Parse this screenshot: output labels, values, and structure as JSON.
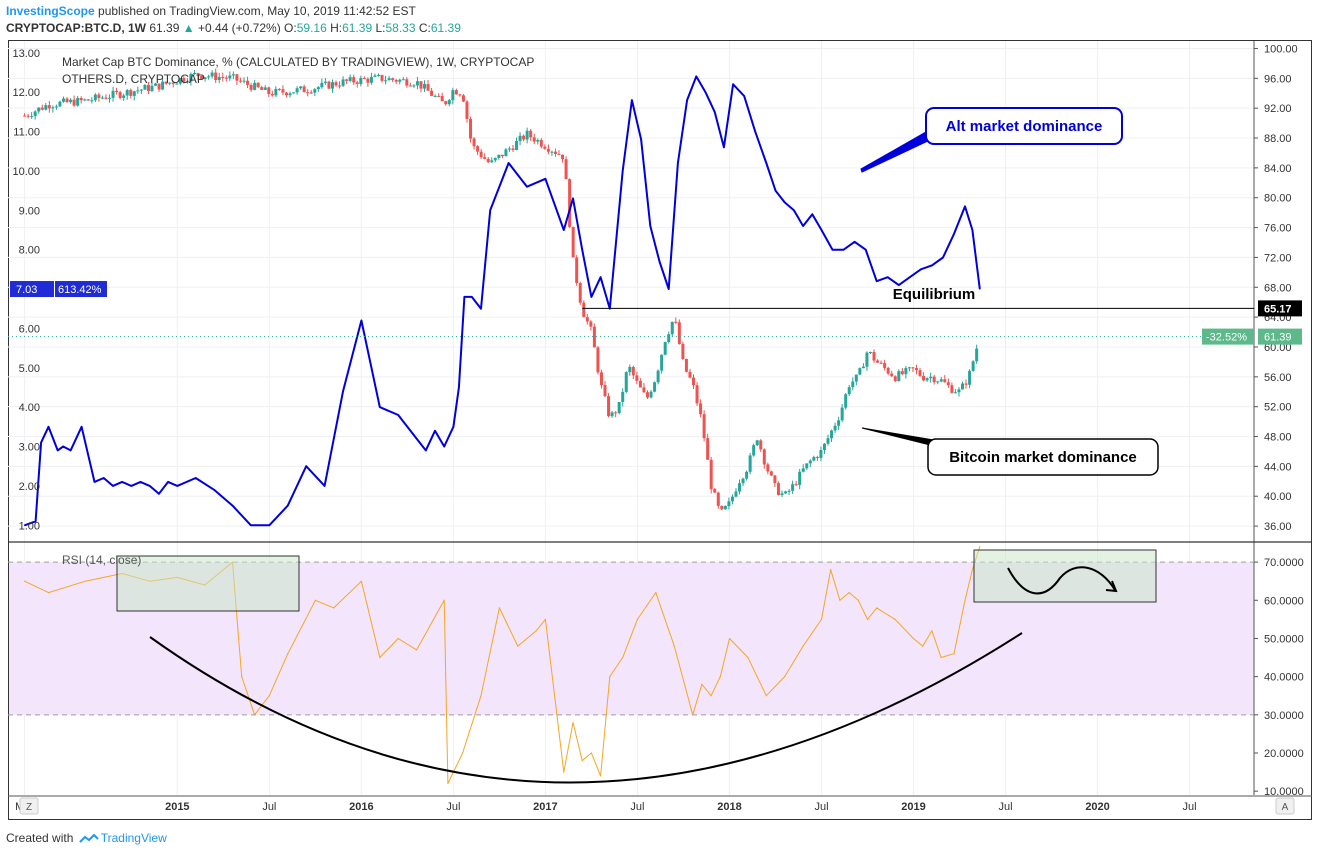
{
  "header": {
    "author": "InvestingScope",
    "published_text": "published on TradingView.com, May 10, 2019 11:42:52 EST",
    "symbol_line": {
      "symbol": "CRYPTOCAP:BTC.D, 1W",
      "last": "61.39",
      "arrow": "▲",
      "change": "+0.44 (+0.72%)",
      "o_label": "O:",
      "o_value": "59.16",
      "h_label": "H:",
      "h_value": "61.39",
      "l_label": "L:",
      "l_value": "58.33",
      "c_label": "C:",
      "c_value": "61.39"
    }
  },
  "legend": {
    "main_series": "Market Cap BTC Dominance, % (CALCULATED BY TRADINGVIEW), 1W, CRYPTOCAP",
    "overlay_series": "OTHERS.D, CRYPTOCAP"
  },
  "rsi_label": "RSI (14, close)",
  "annotations": {
    "alt": "Alt market dominance",
    "btc": "Bitcoin market dominance",
    "equilibrium": "Equilibrium"
  },
  "badges": {
    "left_value": "7.03",
    "left_pct": "613.42%",
    "equilibrium": "65.17",
    "right_pct": "-32.52%",
    "right_value": "61.39"
  },
  "footer": {
    "created_with": "Created with",
    "brand": "TradingView"
  },
  "corner_buttons": {
    "left": "Z",
    "right": "A"
  },
  "colors": {
    "alt_line": "#0000dd",
    "candle_up": "#26a69a",
    "candle_down": "#ef5350",
    "rsi_line": "#f5a623",
    "rsi_band": "#f3e5fb",
    "brand": "#2196f3"
  },
  "chart_data": {
    "type": "line",
    "x_axis": {
      "tick_labels": [
        "Mar",
        "2015",
        "Jul",
        "2016",
        "Jul",
        "2017",
        "Jul",
        "2018",
        "Jul",
        "2019",
        "Jul",
        "2020",
        "Jul"
      ]
    },
    "left_axis": {
      "range": [
        0.6,
        13.3
      ],
      "ticks": [
        "1.00",
        "2.00",
        "3.00",
        "4.00",
        "5.00",
        "6.00",
        "7.00",
        "8.00",
        "9.00",
        "10.00",
        "11.00",
        "12.00",
        "13.00"
      ]
    },
    "right_axis": {
      "range": [
        34,
        101
      ],
      "ticks": [
        "36.00",
        "40.00",
        "44.00",
        "48.00",
        "52.00",
        "56.00",
        "60.00",
        "64.00",
        "68.00",
        "72.00",
        "76.00",
        "80.00",
        "84.00",
        "88.00",
        "92.00",
        "96.00",
        "100.00"
      ]
    },
    "series": [
      {
        "name": "OTHERS.D, CRYPTOCAP",
        "axis": "left",
        "x": [
          2014.17,
          2014.23,
          2014.26,
          2014.3,
          2014.35,
          2014.38,
          2014.42,
          2014.48,
          2014.55,
          2014.6,
          2014.65,
          2014.7,
          2014.75,
          2014.8,
          2014.85,
          2014.9,
          2014.95,
          2015.0,
          2015.1,
          2015.2,
          2015.3,
          2015.4,
          2015.5,
          2015.6,
          2015.7,
          2015.8,
          2015.9,
          2016.0,
          2016.1,
          2016.2,
          2016.3,
          2016.35,
          2016.4,
          2016.45,
          2016.5,
          2016.53,
          2016.56,
          2016.6,
          2016.65,
          2016.7,
          2016.8,
          2016.9,
          2017.0,
          2017.1,
          2017.15,
          2017.2,
          2017.25,
          2017.3,
          2017.35,
          2017.42,
          2017.47,
          2017.52,
          2017.57,
          2017.62,
          2017.67,
          2017.72,
          2017.77,
          2017.82,
          2017.87,
          2017.92,
          2017.97,
          2018.02,
          2018.08,
          2018.14,
          2018.2,
          2018.25,
          2018.3,
          2018.35,
          2018.4,
          2018.45,
          2018.5,
          2018.56,
          2018.62,
          2018.68,
          2018.74,
          2018.8,
          2018.86,
          2018.92,
          2018.98,
          2019.04,
          2019.1,
          2019.16,
          2019.22,
          2019.28,
          2019.32,
          2019.36
        ],
        "values": [
          1.0,
          1.1,
          3.1,
          3.5,
          2.9,
          3.0,
          2.9,
          3.5,
          2.1,
          2.2,
          2.0,
          2.1,
          2.0,
          2.1,
          2.0,
          1.8,
          2.1,
          2.0,
          2.2,
          1.9,
          1.5,
          1.0,
          1.0,
          1.5,
          2.5,
          2.0,
          4.4,
          6.2,
          4.0,
          3.8,
          3.2,
          2.9,
          3.4,
          3.0,
          3.5,
          4.5,
          6.8,
          6.8,
          6.5,
          9.0,
          10.2,
          9.6,
          9.8,
          8.5,
          9.3,
          8.0,
          6.8,
          7.3,
          6.5,
          10.0,
          11.8,
          10.8,
          8.6,
          7.7,
          7.0,
          10.2,
          11.8,
          12.4,
          12.0,
          11.5,
          10.6,
          12.2,
          11.9,
          11.0,
          10.2,
          9.5,
          9.2,
          9.0,
          8.6,
          8.9,
          8.5,
          8.0,
          8.0,
          8.2,
          8.0,
          7.2,
          7.3,
          7.1,
          7.3,
          7.5,
          7.6,
          7.8,
          8.4,
          9.1,
          8.5,
          7.0
        ]
      },
      {
        "name": "Market Cap BTC Dominance, % (CALCULATED BY TRADINGVIEW)",
        "axis": "right",
        "x": [
          2014.17,
          2014.3,
          2014.5,
          2014.7,
          2014.9,
          2015.1,
          2015.3,
          2015.5,
          2015.7,
          2015.9,
          2016.1,
          2016.3,
          2016.45,
          2016.5,
          2016.55,
          2016.6,
          2016.7,
          2016.8,
          2016.9,
          2017.0,
          2017.1,
          2017.15,
          2017.2,
          2017.25,
          2017.3,
          2017.35,
          2017.4,
          2017.45,
          2017.5,
          2017.55,
          2017.6,
          2017.65,
          2017.7,
          2017.75,
          2017.8,
          2017.85,
          2017.9,
          2017.95,
          2018.0,
          2018.05,
          2018.1,
          2018.15,
          2018.2,
          2018.25,
          2018.3,
          2018.35,
          2018.4,
          2018.45,
          2018.5,
          2018.55,
          2018.6,
          2018.65,
          2018.7,
          2018.75,
          2018.8,
          2018.85,
          2018.9,
          2018.95,
          2019.0,
          2019.05,
          2019.1,
          2019.15,
          2019.2,
          2019.25,
          2019.3,
          2019.36
        ],
        "values": [
          91.0,
          92.5,
          93.0,
          94.0,
          95.0,
          96.5,
          96.0,
          94.0,
          94.5,
          95.5,
          96.0,
          95.5,
          92.5,
          94.5,
          94.0,
          87.0,
          84.5,
          86.5,
          88.5,
          87.0,
          85.5,
          71.5,
          65.0,
          62.0,
          55.0,
          50.5,
          52.0,
          57.5,
          55.0,
          53.0,
          56.0,
          61.0,
          64.0,
          57.5,
          55.0,
          50.0,
          41.5,
          37.5,
          39.0,
          42.0,
          44.0,
          48.0,
          44.0,
          41.0,
          40.0,
          41.5,
          43.5,
          45.0,
          46.0,
          48.5,
          51.0,
          55.0,
          56.0,
          59.5,
          58.0,
          57.0,
          56.0,
          56.5,
          57.0,
          56.0,
          56.0,
          55.5,
          54.5,
          54.0,
          56.0,
          61.39
        ]
      },
      {
        "name": "RSI (14, close)",
        "axis": "rsi",
        "x": [
          2014.17,
          2014.3,
          2014.5,
          2014.7,
          2014.85,
          2015.0,
          2015.15,
          2015.3,
          2015.35,
          2015.42,
          2015.5,
          2015.6,
          2015.75,
          2015.85,
          2016.0,
          2016.1,
          2016.2,
          2016.3,
          2016.45,
          2016.47,
          2016.55,
          2016.65,
          2016.75,
          2016.85,
          2016.95,
          2017.0,
          2017.1,
          2017.15,
          2017.2,
          2017.25,
          2017.3,
          2017.35,
          2017.42,
          2017.5,
          2017.6,
          2017.7,
          2017.8,
          2017.85,
          2017.9,
          2017.95,
          2018.0,
          2018.1,
          2018.2,
          2018.3,
          2018.4,
          2018.5,
          2018.55,
          2018.6,
          2018.65,
          2018.7,
          2018.75,
          2018.8,
          2018.9,
          2019.0,
          2019.05,
          2019.1,
          2019.15,
          2019.22,
          2019.28,
          2019.32,
          2019.36
        ],
        "values": [
          65.0,
          62.0,
          65.0,
          67.0,
          65.0,
          66.0,
          64.0,
          70.0,
          40.0,
          30.0,
          35.0,
          46.0,
          60.0,
          58.0,
          65.0,
          45.0,
          50.0,
          47.0,
          60.0,
          12.0,
          20.0,
          35.0,
          58.0,
          48.0,
          52.0,
          55.0,
          15.0,
          28.0,
          18.0,
          20.0,
          14.0,
          40.0,
          45.0,
          55.0,
          62.0,
          48.0,
          30.0,
          38.0,
          35.0,
          40.0,
          50.0,
          45.0,
          35.0,
          40.0,
          48.0,
          55.0,
          68.0,
          60.0,
          62.0,
          60.0,
          55.0,
          58.0,
          55.0,
          50.0,
          48.0,
          52.0,
          45.0,
          46.0,
          60.0,
          68.0,
          74.0
        ]
      }
    ],
    "reference_lines": [
      {
        "axis": "right",
        "value": 65.17,
        "label": "Equilibrium"
      },
      {
        "axis": "rsi",
        "value": 70
      },
      {
        "axis": "rsi",
        "value": 30
      }
    ],
    "rsi_axis": {
      "range": [
        9,
        75
      ],
      "ticks": [
        "10.0000",
        "20.0000",
        "30.0000",
        "40.0000",
        "50.0000",
        "60.0000",
        "70.0000"
      ]
    }
  }
}
